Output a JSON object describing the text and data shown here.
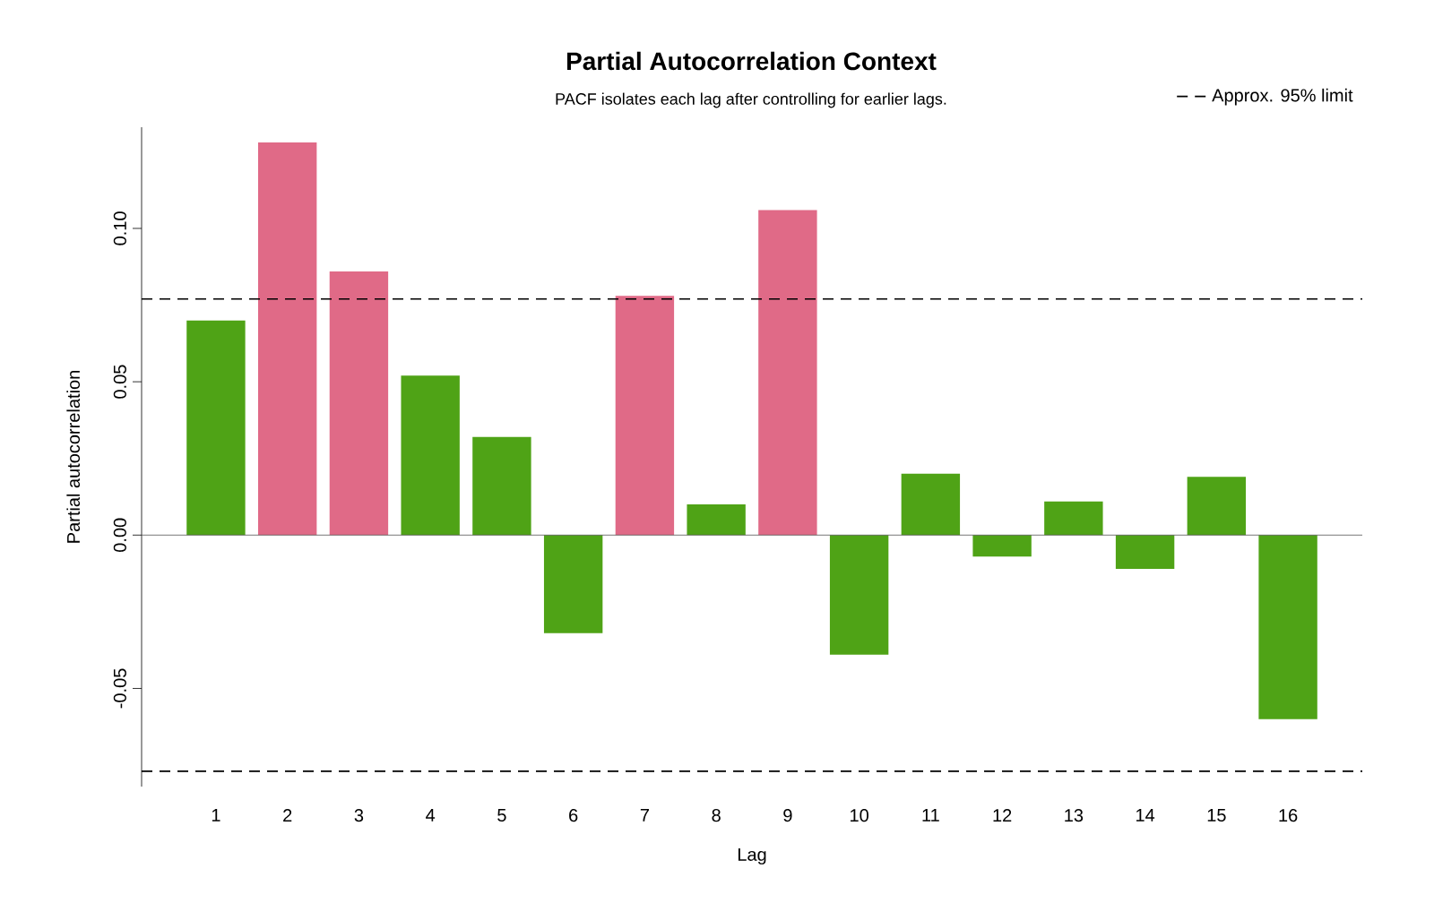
{
  "chart_data": {
    "type": "bar",
    "title": "Partial Autocorrelation Context",
    "subtitle": "PACF isolates each lag after controlling for earlier lags.",
    "xlabel": "Lag",
    "ylabel": "Partial autocorrelation",
    "categories": [
      "1",
      "2",
      "3",
      "4",
      "5",
      "6",
      "7",
      "8",
      "9",
      "10",
      "11",
      "12",
      "13",
      "14",
      "15",
      "16"
    ],
    "values": [
      0.07,
      0.128,
      0.086,
      0.052,
      0.032,
      -0.032,
      0.078,
      0.01,
      0.106,
      -0.039,
      0.02,
      -0.007,
      0.011,
      -0.011,
      0.019,
      -0.06
    ],
    "colors": [
      "#4fa316",
      "#e06a87",
      "#e06a87",
      "#4fa316",
      "#4fa316",
      "#4fa316",
      "#e06a87",
      "#4fa316",
      "#e06a87",
      "#4fa316",
      "#4fa316",
      "#4fa316",
      "#4fa316",
      "#4fa316",
      "#4fa316",
      "#4fa316"
    ],
    "ylim": [
      -0.082,
      0.133
    ],
    "yticks": [
      -0.05,
      {
        "value": 0,
        "label": "0.00"
      },
      0.05,
      {
        "value": 0.1,
        "label": "0.10"
      }
    ],
    "ref_lines": [
      {
        "axis": "y",
        "value": 0.077,
        "label": "Approx. 95% limit",
        "color": "#000000",
        "line_style": "dashed"
      },
      {
        "axis": "y",
        "value": -0.077,
        "color": "#000000",
        "line_style": "dashed"
      },
      {
        "axis": "y",
        "value": 0,
        "color": "#555555",
        "line_style": "solid"
      }
    ],
    "legend": "top right",
    "grid": false
  }
}
